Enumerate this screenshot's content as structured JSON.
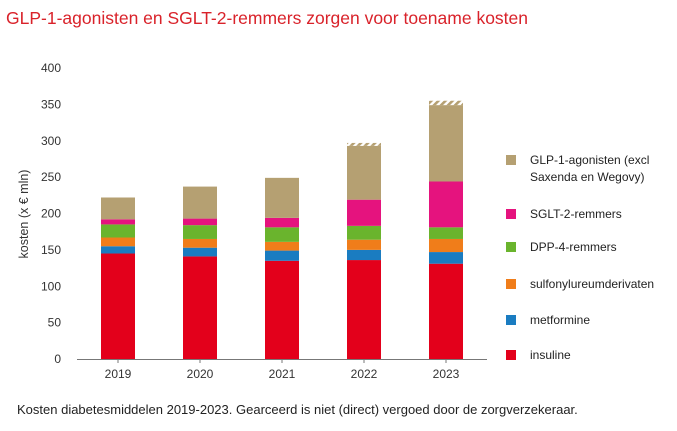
{
  "title": "GLP-1-agonisten en SGLT-2-remmers zorgen voor toename kosten",
  "caption": "Kosten diabetesmiddelen 2019-2023. Gearceerd is niet (direct) vergoed door de zorgverzekeraar.",
  "chart_data": {
    "type": "bar",
    "stacked": true,
    "title": "GLP-1-agonisten en SGLT-2-remmers zorgen voor toename kosten",
    "ylabel": "kosten (x € mln)",
    "xlabel": "",
    "ylim": [
      0,
      400
    ],
    "yticks": [
      0,
      50,
      100,
      150,
      200,
      250,
      300,
      350,
      400
    ],
    "categories": [
      "2019",
      "2020",
      "2021",
      "2022",
      "2023"
    ],
    "legend_position": "right",
    "grid": false,
    "series": [
      {
        "name": "insuline",
        "color": "#e3001b",
        "values": [
          145,
          141,
          135,
          136,
          131
        ]
      },
      {
        "name": "metformine",
        "color": "#1a7cc1",
        "values": [
          10,
          12,
          14,
          14,
          16
        ]
      },
      {
        "name": "sulfonylureumderivaten",
        "color": "#f07d1a",
        "values": [
          12,
          12,
          12,
          14,
          18
        ]
      },
      {
        "name": "DPP-4-remmers",
        "color": "#6ab42d",
        "values": [
          18,
          19,
          20,
          19,
          16
        ]
      },
      {
        "name": "SGLT-2-remmers",
        "color": "#e5137e",
        "values": [
          7,
          9,
          13,
          36,
          63
        ]
      },
      {
        "name": "GLP-1-agonisten (excl Saxenda en Wegovy)",
        "color": "#b5a072",
        "values": [
          30,
          44,
          55,
          74,
          105
        ]
      }
    ],
    "hatched_not_reimbursed": [
      0,
      0,
      0,
      4,
      6
    ]
  }
}
